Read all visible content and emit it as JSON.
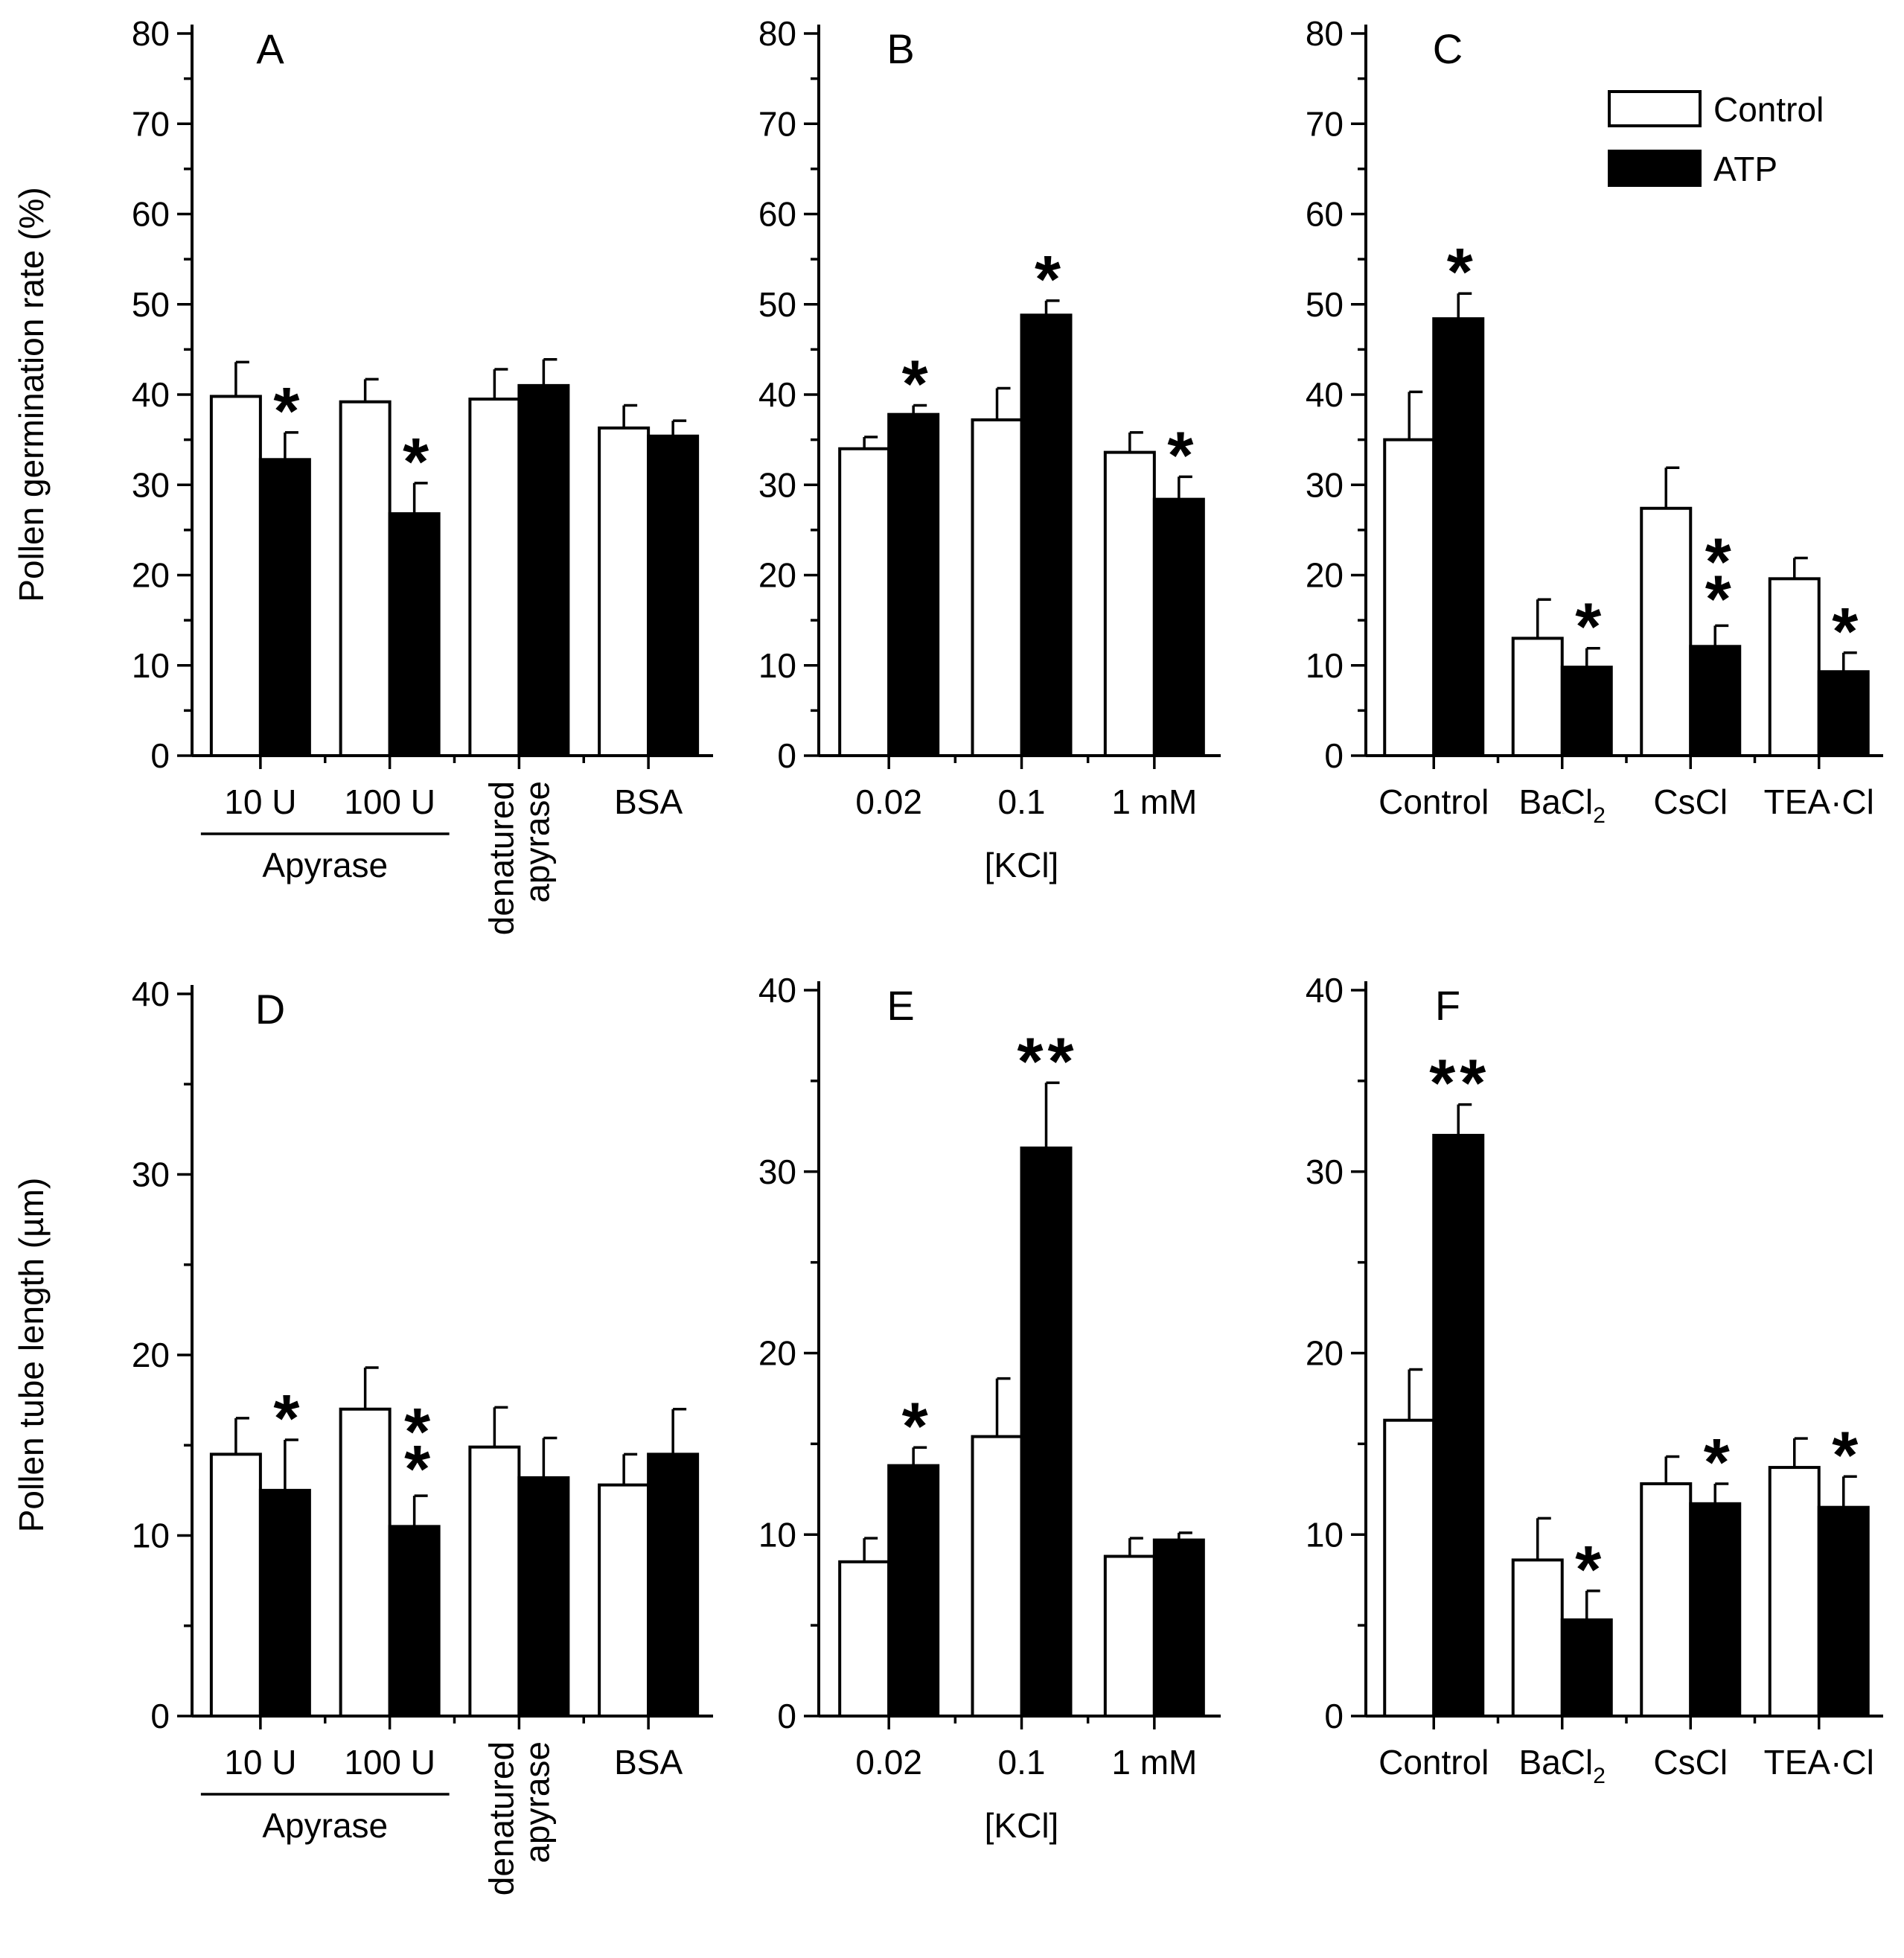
{
  "colors": {
    "control": "#ffffff",
    "atp": "#000000",
    "stroke": "#000000"
  },
  "legend": {
    "items": [
      {
        "label": "Control"
      },
      {
        "label": "ATP"
      }
    ]
  },
  "chart_data": [
    {
      "panel": "A",
      "type": "bar",
      "ylabel": "Pollen germination rate (%)",
      "ylim": [
        0,
        80
      ],
      "yticks": [
        0,
        10,
        20,
        30,
        40,
        50,
        60,
        70,
        80
      ],
      "categories": [
        "10 U",
        "100 U",
        "denatured apyrase",
        "BSA"
      ],
      "category_lines": [
        [
          "10 U"
        ],
        [
          "100 U"
        ],
        [
          "denatured",
          "apyrase"
        ],
        [
          "BSA"
        ]
      ],
      "group_label": "Apyrase",
      "xlabel": "",
      "series": [
        {
          "name": "Control",
          "values": [
            39.8,
            39.2,
            39.5,
            36.3
          ],
          "errors": [
            3.8,
            2.5,
            3.3,
            2.5
          ]
        },
        {
          "name": "ATP",
          "values": [
            32.8,
            26.8,
            41.0,
            35.4
          ],
          "errors": [
            3.0,
            3.4,
            2.9,
            1.7
          ]
        }
      ],
      "annotations": [
        {
          "category": 0,
          "series": "ATP",
          "text": "*"
        },
        {
          "category": 1,
          "series": "ATP",
          "text": "*"
        }
      ]
    },
    {
      "panel": "B",
      "type": "bar",
      "ylabel": "",
      "ylim": [
        0,
        80
      ],
      "yticks": [
        0,
        10,
        20,
        30,
        40,
        50,
        60,
        70,
        80
      ],
      "categories": [
        "0.02",
        "0.1",
        "1 mM"
      ],
      "category_lines": [
        [
          "0.02"
        ],
        [
          "0.1"
        ],
        [
          "1 mM"
        ]
      ],
      "xlabel": "[KCl]",
      "series": [
        {
          "name": "Control",
          "values": [
            34.0,
            37.2,
            33.6
          ],
          "errors": [
            1.3,
            3.5,
            2.2
          ]
        },
        {
          "name": "ATP",
          "values": [
            37.8,
            48.8,
            28.4
          ],
          "errors": [
            1.0,
            1.6,
            2.5
          ]
        }
      ],
      "annotations": [
        {
          "category": 0,
          "series": "ATP",
          "text": "*"
        },
        {
          "category": 1,
          "series": "ATP",
          "text": "*"
        },
        {
          "category": 2,
          "series": "ATP",
          "text": "*"
        }
      ]
    },
    {
      "panel": "C",
      "type": "bar",
      "ylabel": "",
      "ylim": [
        0,
        80
      ],
      "yticks": [
        0,
        10,
        20,
        30,
        40,
        50,
        60,
        70,
        80
      ],
      "categories": [
        "Control",
        "BaCl2",
        "CsCl",
        "TEA·Cl"
      ],
      "category_lines": [
        [
          "Control"
        ],
        [
          "BaCl2"
        ],
        [
          "CsCl"
        ],
        [
          "TEA·Cl"
        ]
      ],
      "xlabel": "",
      "legend": true,
      "series": [
        {
          "name": "Control",
          "values": [
            35.0,
            13.0,
            27.4,
            19.6
          ],
          "errors": [
            5.3,
            4.3,
            4.5,
            2.3
          ]
        },
        {
          "name": "ATP",
          "values": [
            48.4,
            9.8,
            12.1,
            9.3
          ],
          "errors": [
            2.8,
            2.1,
            2.3,
            2.1
          ]
        }
      ],
      "annotations": [
        {
          "category": 0,
          "series": "ATP",
          "text": "*"
        },
        {
          "category": 1,
          "series": "ATP",
          "text": "*"
        },
        {
          "category": 2,
          "series": "ATP",
          "text": "**",
          "stacked": true
        },
        {
          "category": 3,
          "series": "ATP",
          "text": "*"
        }
      ]
    },
    {
      "panel": "D",
      "type": "bar",
      "ylabel": "Pollen tube length (µm)",
      "ylim": [
        0,
        40
      ],
      "yticks": [
        0,
        10,
        20,
        30,
        40
      ],
      "categories": [
        "10 U",
        "100 U",
        "denatured apyrase",
        "BSA"
      ],
      "category_lines": [
        [
          "10 U"
        ],
        [
          "100 U"
        ],
        [
          "denatured",
          "apyrase"
        ],
        [
          "BSA"
        ]
      ],
      "group_label": "Apyrase",
      "xlabel": "",
      "series": [
        {
          "name": "Control",
          "values": [
            14.5,
            17.0,
            14.9,
            12.8
          ],
          "errors": [
            2.0,
            2.3,
            2.2,
            1.7
          ]
        },
        {
          "name": "ATP",
          "values": [
            12.5,
            10.5,
            13.2,
            14.5
          ],
          "errors": [
            2.8,
            1.7,
            2.2,
            2.5
          ]
        }
      ],
      "annotations": [
        {
          "category": 0,
          "series": "ATP",
          "text": "*"
        },
        {
          "category": 1,
          "series": "ATP",
          "text": "**",
          "stacked": true
        }
      ]
    },
    {
      "panel": "E",
      "type": "bar",
      "ylabel": "",
      "ylim": [
        0,
        40
      ],
      "yticks": [
        0,
        10,
        20,
        30,
        40
      ],
      "categories": [
        "0.02",
        "0.1",
        "1 mM"
      ],
      "category_lines": [
        [
          "0.02"
        ],
        [
          "0.1"
        ],
        [
          "1 mM"
        ]
      ],
      "xlabel": "[KCl]",
      "series": [
        {
          "name": "Control",
          "values": [
            8.5,
            15.4,
            8.8
          ],
          "errors": [
            1.3,
            3.2,
            1.0
          ]
        },
        {
          "name": "ATP",
          "values": [
            13.8,
            31.3,
            9.7
          ],
          "errors": [
            1.0,
            3.6,
            0.4
          ]
        }
      ],
      "annotations": [
        {
          "category": 0,
          "series": "ATP",
          "text": "*"
        },
        {
          "category": 1,
          "series": "ATP",
          "text": "**"
        }
      ]
    },
    {
      "panel": "F",
      "type": "bar",
      "ylabel": "",
      "ylim": [
        0,
        40
      ],
      "yticks": [
        0,
        10,
        20,
        30,
        40
      ],
      "categories": [
        "Control",
        "BaCl2",
        "CsCl",
        "TEA·Cl"
      ],
      "category_lines": [
        [
          "Control"
        ],
        [
          "BaCl2"
        ],
        [
          "CsCl"
        ],
        [
          "TEA·Cl"
        ]
      ],
      "xlabel": "",
      "series": [
        {
          "name": "Control",
          "values": [
            16.3,
            8.6,
            12.8,
            13.7
          ],
          "errors": [
            2.8,
            2.3,
            1.5,
            1.6
          ]
        },
        {
          "name": "ATP",
          "values": [
            32.0,
            5.3,
            11.7,
            11.5
          ],
          "errors": [
            1.7,
            1.6,
            1.1,
            1.7
          ]
        }
      ],
      "annotations": [
        {
          "category": 0,
          "series": "ATP",
          "text": "**"
        },
        {
          "category": 1,
          "series": "ATP",
          "text": "*"
        },
        {
          "category": 2,
          "series": "ATP",
          "text": "*"
        },
        {
          "category": 3,
          "series": "ATP",
          "text": "*"
        }
      ]
    }
  ]
}
